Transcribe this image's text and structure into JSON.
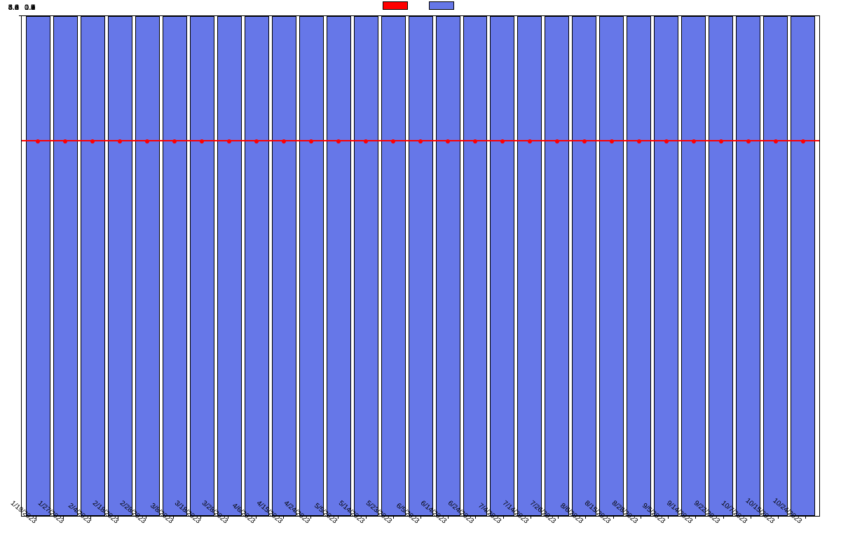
{
  "chart": {
    "type": "bar+line",
    "background_color": "#ffffff",
    "plot_border_color": "#000000",
    "left_axis": {
      "min": 3.0,
      "max": 5.0,
      "ticks": [
        "3.0",
        "3.2",
        "3.4",
        "3.6",
        "3.8",
        "4.0",
        "4.2",
        "4.4",
        "4.6",
        "4.8",
        "5.0"
      ],
      "tick_positions": [
        0,
        0.1,
        0.2,
        0.3,
        0.4,
        0.5,
        0.6,
        0.7,
        0.8,
        0.9,
        1.0
      ],
      "label_fontsize": 11,
      "label_color": "#000000"
    },
    "right_axis": {
      "min": 0.0,
      "max": 1.0,
      "ticks": [
        "0.0",
        "0.1",
        "0.2",
        "0.3",
        "0.4",
        "0.5",
        "0.6",
        "0.7",
        "0.8",
        "0.9",
        "1.0"
      ],
      "tick_positions": [
        0,
        0.1,
        0.2,
        0.3,
        0.4,
        0.5,
        0.6,
        0.7,
        0.8,
        0.9,
        1.0
      ],
      "label_fontsize": 11,
      "label_color": "#000000"
    },
    "categories": [
      "1/19/2023",
      "1/27/2023",
      "2/4/2023",
      "2/18/2023",
      "2/28/2023",
      "3/8/2023",
      "3/18/2023",
      "3/28/2023",
      "4/6/2023",
      "4/15/2023",
      "4/24/2023",
      "5/5/2023",
      "5/14/2023",
      "5/23/2023",
      "6/5/2023",
      "6/14/2023",
      "6/24/2023",
      "7/4/2023",
      "7/14/2023",
      "7/26/2023",
      "8/6/2023",
      "8/15/2023",
      "8/28/2023",
      "9/5/2023",
      "9/14/2023",
      "9/22/2023",
      "10/7/2023",
      "10/15/2023",
      "10/24/2023"
    ],
    "bars": {
      "axis": "right",
      "color": "#6677e8",
      "border_color": "#000000",
      "bar_width": 0.85,
      "values": [
        1.0,
        1.0,
        1.0,
        1.0,
        1.0,
        1.0,
        1.0,
        1.0,
        1.0,
        1.0,
        1.0,
        1.0,
        1.0,
        1.0,
        1.0,
        1.0,
        1.0,
        1.0,
        1.0,
        1.0,
        1.0,
        1.0,
        1.0,
        1.0,
        1.0,
        1.0,
        1.0,
        1.0,
        1.0
      ]
    },
    "line": {
      "axis": "left",
      "color": "#ff0000",
      "width": 2,
      "marker_color": "#ff0000",
      "marker_size": 6,
      "values": [
        4.5,
        4.5,
        4.5,
        4.5,
        4.5,
        4.5,
        4.5,
        4.5,
        4.5,
        4.5,
        4.5,
        4.5,
        4.5,
        4.5,
        4.5,
        4.5,
        4.5,
        4.5,
        4.5,
        4.5,
        4.5,
        4.5,
        4.5,
        4.5,
        4.5,
        4.5,
        4.5,
        4.5,
        4.5
      ]
    },
    "legend": {
      "items": [
        {
          "type": "swatch",
          "color": "#ff0000",
          "border": "#000000",
          "label": ""
        },
        {
          "type": "swatch",
          "color": "#6677e8",
          "border": "#000000",
          "label": ""
        }
      ],
      "fontsize": 11
    },
    "x_label_rotation": 40,
    "x_label_fontsize": 10
  }
}
